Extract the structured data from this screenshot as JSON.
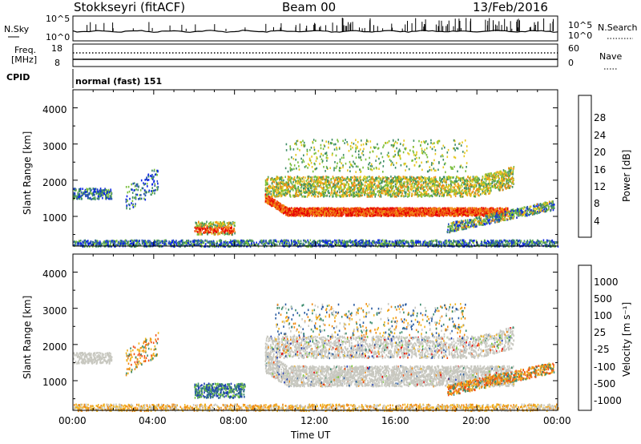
{
  "header": {
    "station": "Stokkseyri (fitACF)",
    "beam": "Beam 00",
    "date": "13/Feb/2016"
  },
  "strips": {
    "nsky_label": "N.Sky",
    "nsky_ticks": [
      "10^5",
      "10^0"
    ],
    "nsearch_label": "N.Search",
    "nsearch_ticks": [
      "10^5",
      "10^0"
    ],
    "freq_label_line1": "Freq.",
    "freq_label_line2": "[MHz]",
    "freq_ticks": [
      "18",
      "8"
    ],
    "nave_label": "Nave",
    "nave_ticks": [
      "60",
      "0"
    ],
    "cpid_label": "CPID",
    "cpid_value": "normal (fast) 151"
  },
  "chart_data": [
    {
      "type": "heatmap",
      "name": "power-panel",
      "xlabel": "",
      "ylabel": "Slant Range [km]",
      "ylim": [
        180,
        4500
      ],
      "yticks": [
        "1000",
        "2000",
        "3000",
        "4000"
      ],
      "colorbar_label": "Power [dB]",
      "colorbar_ticks": [
        "4",
        "8",
        "12",
        "16",
        "20",
        "24",
        "28"
      ],
      "colors": [
        "#0a23e6",
        "#2650b4",
        "#3c8c64",
        "#78be3c",
        "#e6c81e",
        "#f08c14",
        "#f04614",
        "#e60000"
      ]
    },
    {
      "type": "heatmap",
      "name": "velocity-panel",
      "xlabel": "Time UT",
      "ylabel": "Slant Range [km]",
      "ylim": [
        180,
        4500
      ],
      "yticks": [
        "1000",
        "2000",
        "3000",
        "4000"
      ],
      "xticks": [
        "00:00",
        "04:00",
        "08:00",
        "12:00",
        "16:00",
        "20:00",
        "00:00"
      ],
      "colorbar_label": "Velocity [m s⁻¹]",
      "colorbar_ticks": [
        "1000",
        "500",
        "100",
        "25",
        "-25",
        "-100",
        "-500",
        "-1000"
      ],
      "colors": [
        "#1e3cb4",
        "#285aa0",
        "#3c8c6e",
        "#78c83c",
        "#c8c8c0",
        "#f0b41e",
        "#f08c14",
        "#f05014",
        "#e60000"
      ]
    }
  ]
}
